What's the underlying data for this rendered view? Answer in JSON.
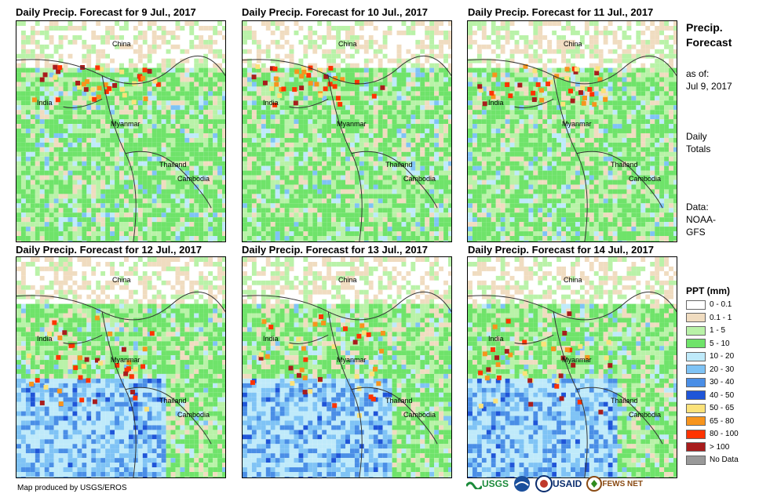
{
  "panels": [
    {
      "title": "Daily Precip. Forecast for 9 Jul., 2017"
    },
    {
      "title": "Daily Precip. Forecast for 10 Jul., 2017"
    },
    {
      "title": "Daily Precip. Forecast for 11 Jul., 2017"
    },
    {
      "title": "Daily Precip. Forecast for 12 Jul., 2017"
    },
    {
      "title": "Daily Precip. Forecast for 13 Jul., 2017"
    },
    {
      "title": "Daily Precip. Forecast for 14 Jul., 2017"
    }
  ],
  "places": [
    "China",
    "India",
    "Myanmar",
    "Thailand",
    "Cambodia"
  ],
  "side": {
    "title_line1": "Precip.",
    "title_line2": "Forecast",
    "asof_line1": "as of:",
    "asof_line2": "Jul 9, 2017",
    "daily_line1": "Daily",
    "daily_line2": "Totals",
    "data_line1": "Data:",
    "data_line2": "NOAA-",
    "data_line3": "GFS"
  },
  "legend": {
    "title": "PPT (mm)",
    "items": [
      {
        "label": "0 - 0.1",
        "color": "#ffffff"
      },
      {
        "label": "0.1 - 1",
        "color": "#f0dcc0"
      },
      {
        "label": "1 - 5",
        "color": "#b9f2a8"
      },
      {
        "label": "5 - 10",
        "color": "#6fe36a"
      },
      {
        "label": "10 - 20",
        "color": "#bfeafa"
      },
      {
        "label": "20 - 30",
        "color": "#7fc3f5"
      },
      {
        "label": "30 - 40",
        "color": "#4a8ee6"
      },
      {
        "label": "40 - 50",
        "color": "#1f55d8"
      },
      {
        "label": "50 - 65",
        "color": "#fbe27a"
      },
      {
        "label": "65 - 80",
        "color": "#f7941d"
      },
      {
        "label": "80 - 100",
        "color": "#ff3300"
      },
      {
        "label": "> 100",
        "color": "#a81c1c"
      },
      {
        "label": "No Data",
        "color": "#999999"
      }
    ]
  },
  "credit": "Map produced by USGS/EROS",
  "logos": {
    "usgs": "USGS",
    "noaa": "NOAA",
    "usaid": "USAID",
    "fewsnet": "FEWS NET"
  }
}
